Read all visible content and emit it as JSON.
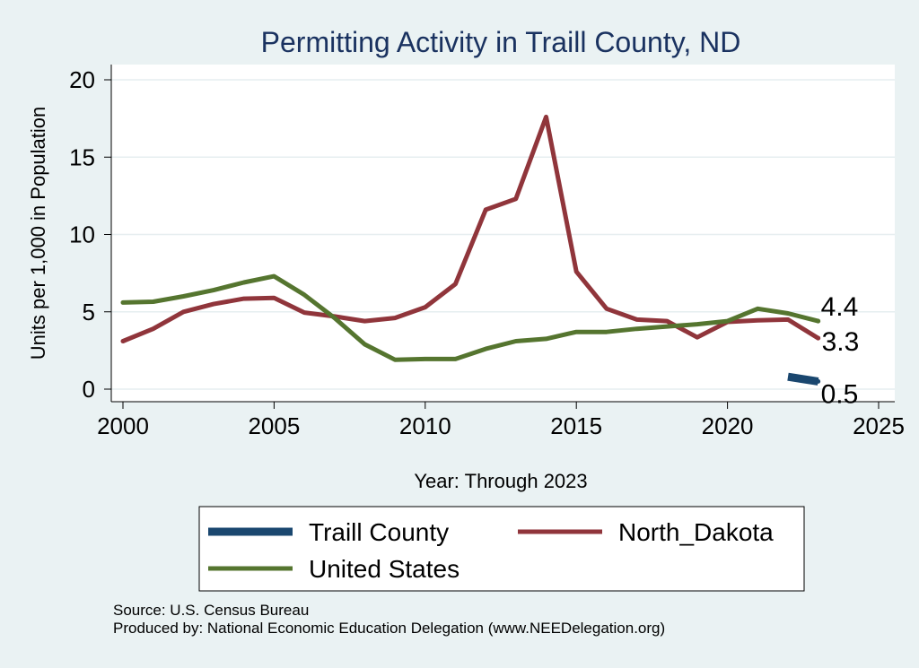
{
  "chart_data": {
    "type": "line",
    "title": "Permitting Activity in Traill County, ND",
    "xlabel": "Year: Through 2023",
    "ylabel": "Units per 1,000 in Population",
    "xlim": [
      2000,
      2025
    ],
    "ylim": [
      0,
      20
    ],
    "xticks": [
      2000,
      2005,
      2010,
      2015,
      2020,
      2025
    ],
    "yticks": [
      0,
      5,
      10,
      15,
      20
    ],
    "grid": "horizontal",
    "legend": "bottom",
    "series": [
      {
        "name": "Traill County",
        "color": "#1a476f",
        "x": [
          2022,
          2023
        ],
        "values": [
          0.8,
          0.5
        ],
        "end_label": "0.5"
      },
      {
        "name": "North_Dakota",
        "color": "#90353b",
        "x": [
          2000,
          2001,
          2002,
          2003,
          2004,
          2005,
          2006,
          2007,
          2008,
          2009,
          2010,
          2011,
          2012,
          2013,
          2014,
          2015,
          2016,
          2017,
          2018,
          2019,
          2020,
          2021,
          2022,
          2023
        ],
        "values": [
          3.1,
          3.9,
          5.0,
          5.5,
          5.85,
          5.9,
          4.95,
          4.7,
          4.4,
          4.6,
          5.3,
          6.8,
          11.6,
          12.3,
          17.6,
          7.6,
          5.2,
          4.5,
          4.4,
          3.35,
          4.35,
          4.45,
          4.5,
          3.3
        ],
        "end_label": "3.3"
      },
      {
        "name": "United States",
        "color": "#55752f",
        "x": [
          2000,
          2001,
          2002,
          2003,
          2004,
          2005,
          2006,
          2007,
          2008,
          2009,
          2010,
          2011,
          2012,
          2013,
          2014,
          2015,
          2016,
          2017,
          2018,
          2019,
          2020,
          2021,
          2022,
          2023
        ],
        "values": [
          5.6,
          5.65,
          6.0,
          6.4,
          6.9,
          7.3,
          6.1,
          4.6,
          2.9,
          1.9,
          1.95,
          1.95,
          2.6,
          3.1,
          3.25,
          3.7,
          3.7,
          3.9,
          4.05,
          4.2,
          4.4,
          5.2,
          4.9,
          4.4
        ],
        "end_label": "4.4"
      }
    ]
  },
  "footer": {
    "source": "Source: U.S. Census Bureau",
    "produced_by": "Produced by: National Economic Education Delegation (www.NEEDelegation.org)"
  },
  "colors": {
    "background": "#eaf2f3",
    "plot_background": "#ffffff",
    "title": "#1a3260"
  }
}
